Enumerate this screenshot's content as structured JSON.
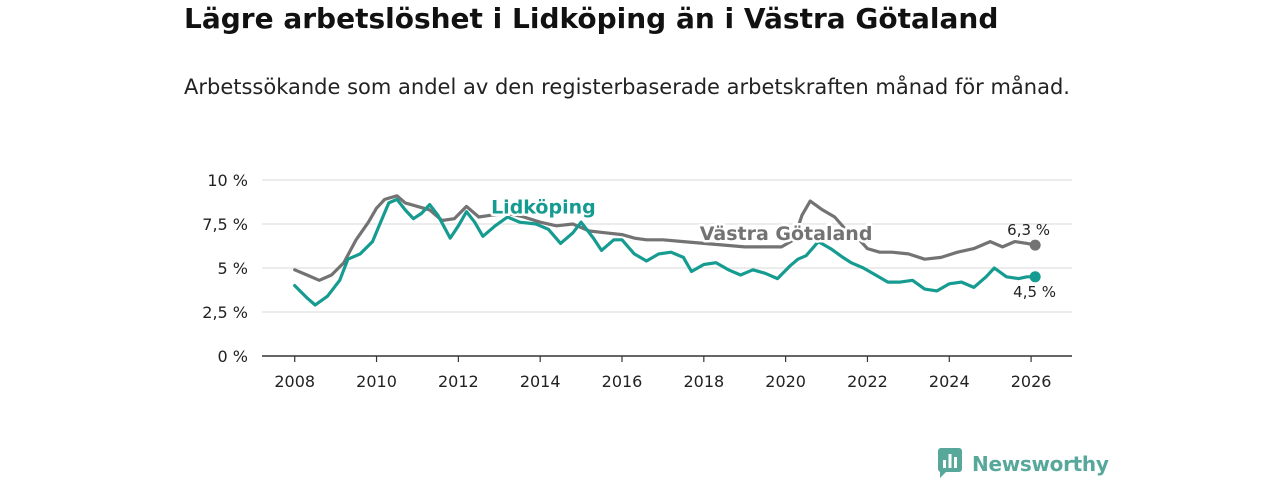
{
  "header": {
    "title": "Lägre arbetslöshet i Lidköping än i Västra Götaland",
    "subtitle": "Arbetssökande som andel av den registerbaserade arbetskraften månad för månad."
  },
  "chart_data": {
    "type": "line",
    "title": "Lägre arbetslöshet i Lidköping än i Västra Götaland",
    "subtitle": "Arbetssökande som andel av den registerbaserade arbetskraften månad för månad.",
    "xlabel": "",
    "ylabel": "",
    "xlim": [
      2007.2,
      2027.0
    ],
    "ylim": [
      0,
      10
    ],
    "y_ticks": [
      0,
      2.5,
      5,
      7.5,
      10
    ],
    "y_tick_labels": [
      "0 %",
      "2,5 %",
      "5 %",
      "7,5 %",
      "10 %"
    ],
    "x_ticks": [
      2008,
      2010,
      2012,
      2014,
      2016,
      2018,
      2020,
      2022,
      2024,
      2026
    ],
    "x_tick_labels": [
      "2008",
      "2010",
      "2012",
      "2014",
      "2016",
      "2018",
      "2020",
      "2022",
      "2024",
      "2026"
    ],
    "grid": true,
    "series": [
      {
        "name": "Västra Götaland",
        "color": "#737373",
        "end_label": "6,3 %",
        "points": [
          [
            2008.0,
            4.9
          ],
          [
            2008.3,
            4.6
          ],
          [
            2008.6,
            4.3
          ],
          [
            2008.9,
            4.6
          ],
          [
            2009.2,
            5.3
          ],
          [
            2009.5,
            6.6
          ],
          [
            2009.8,
            7.6
          ],
          [
            2010.0,
            8.4
          ],
          [
            2010.2,
            8.9
          ],
          [
            2010.5,
            9.1
          ],
          [
            2010.7,
            8.7
          ],
          [
            2011.0,
            8.5
          ],
          [
            2011.3,
            8.3
          ],
          [
            2011.6,
            7.7
          ],
          [
            2011.9,
            7.8
          ],
          [
            2012.2,
            8.5
          ],
          [
            2012.5,
            7.9
          ],
          [
            2012.8,
            8.0
          ],
          [
            2013.2,
            8.1
          ],
          [
            2013.6,
            7.9
          ],
          [
            2014.0,
            7.6
          ],
          [
            2014.4,
            7.4
          ],
          [
            2014.8,
            7.5
          ],
          [
            2015.2,
            7.1
          ],
          [
            2015.6,
            7.0
          ],
          [
            2016.0,
            6.9
          ],
          [
            2016.3,
            6.7
          ],
          [
            2016.6,
            6.6
          ],
          [
            2017.0,
            6.6
          ],
          [
            2017.5,
            6.5
          ],
          [
            2018.0,
            6.4
          ],
          [
            2018.5,
            6.3
          ],
          [
            2019.0,
            6.2
          ],
          [
            2019.5,
            6.2
          ],
          [
            2019.9,
            6.2
          ],
          [
            2020.2,
            6.6
          ],
          [
            2020.4,
            8.0
          ],
          [
            2020.6,
            8.8
          ],
          [
            2020.9,
            8.3
          ],
          [
            2021.2,
            7.9
          ],
          [
            2021.5,
            7.1
          ],
          [
            2021.8,
            6.6
          ],
          [
            2022.0,
            6.1
          ],
          [
            2022.3,
            5.9
          ],
          [
            2022.6,
            5.9
          ],
          [
            2023.0,
            5.8
          ],
          [
            2023.4,
            5.5
          ],
          [
            2023.8,
            5.6
          ],
          [
            2024.2,
            5.9
          ],
          [
            2024.6,
            6.1
          ],
          [
            2025.0,
            6.5
          ],
          [
            2025.3,
            6.2
          ],
          [
            2025.6,
            6.5
          ],
          [
            2025.9,
            6.4
          ],
          [
            2026.1,
            6.3
          ]
        ]
      },
      {
        "name": "Lidköping",
        "color": "#169b91",
        "end_label": "4,5 %",
        "points": [
          [
            2008.0,
            4.0
          ],
          [
            2008.3,
            3.3
          ],
          [
            2008.5,
            2.9
          ],
          [
            2008.8,
            3.4
          ],
          [
            2009.1,
            4.3
          ],
          [
            2009.3,
            5.5
          ],
          [
            2009.6,
            5.8
          ],
          [
            2009.9,
            6.5
          ],
          [
            2010.1,
            7.6
          ],
          [
            2010.3,
            8.7
          ],
          [
            2010.5,
            8.9
          ],
          [
            2010.7,
            8.3
          ],
          [
            2010.9,
            7.8
          ],
          [
            2011.1,
            8.1
          ],
          [
            2011.3,
            8.6
          ],
          [
            2011.5,
            8.0
          ],
          [
            2011.8,
            6.7
          ],
          [
            2012.0,
            7.4
          ],
          [
            2012.2,
            8.2
          ],
          [
            2012.4,
            7.6
          ],
          [
            2012.6,
            6.8
          ],
          [
            2012.9,
            7.4
          ],
          [
            2013.2,
            7.9
          ],
          [
            2013.5,
            7.6
          ],
          [
            2013.9,
            7.5
          ],
          [
            2014.2,
            7.2
          ],
          [
            2014.5,
            6.4
          ],
          [
            2014.8,
            7.0
          ],
          [
            2015.0,
            7.6
          ],
          [
            2015.3,
            6.7
          ],
          [
            2015.5,
            6.0
          ],
          [
            2015.8,
            6.6
          ],
          [
            2016.0,
            6.6
          ],
          [
            2016.3,
            5.8
          ],
          [
            2016.6,
            5.4
          ],
          [
            2016.9,
            5.8
          ],
          [
            2017.2,
            5.9
          ],
          [
            2017.5,
            5.6
          ],
          [
            2017.7,
            4.8
          ],
          [
            2018.0,
            5.2
          ],
          [
            2018.3,
            5.3
          ],
          [
            2018.6,
            4.9
          ],
          [
            2018.9,
            4.6
          ],
          [
            2019.2,
            4.9
          ],
          [
            2019.5,
            4.7
          ],
          [
            2019.8,
            4.4
          ],
          [
            2020.1,
            5.1
          ],
          [
            2020.3,
            5.5
          ],
          [
            2020.5,
            5.7
          ],
          [
            2020.8,
            6.5
          ],
          [
            2021.1,
            6.1
          ],
          [
            2021.4,
            5.6
          ],
          [
            2021.6,
            5.3
          ],
          [
            2021.9,
            5.0
          ],
          [
            2022.2,
            4.6
          ],
          [
            2022.5,
            4.2
          ],
          [
            2022.8,
            4.2
          ],
          [
            2023.1,
            4.3
          ],
          [
            2023.4,
            3.8
          ],
          [
            2023.7,
            3.7
          ],
          [
            2024.0,
            4.1
          ],
          [
            2024.3,
            4.2
          ],
          [
            2024.6,
            3.9
          ],
          [
            2024.9,
            4.5
          ],
          [
            2025.1,
            5.0
          ],
          [
            2025.4,
            4.5
          ],
          [
            2025.7,
            4.4
          ],
          [
            2025.9,
            4.5
          ],
          [
            2026.1,
            4.5
          ]
        ]
      }
    ],
    "annotations": [
      {
        "text": "Lidköping",
        "series": "Lidköping",
        "anchor_x": 2012.8,
        "anchor_y": 8.1
      },
      {
        "text": "Västra Götaland",
        "series": "Västra Götaland",
        "anchor_x": 2017.9,
        "anchor_y": 6.6
      }
    ]
  },
  "footer": {
    "brand": "Newsworthy"
  }
}
